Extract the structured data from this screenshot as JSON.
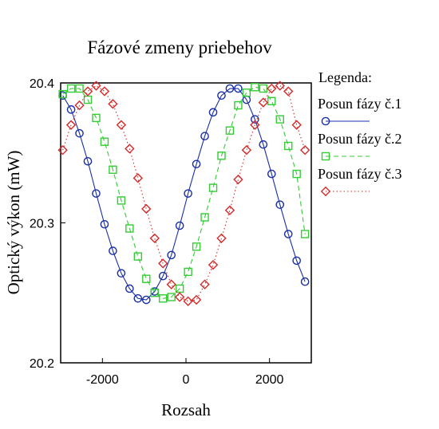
{
  "chart_data": {
    "type": "line",
    "title": "Fázové zmeny priebehov",
    "xlabel": "Rozsah",
    "ylabel": "Optický výkon (mW)",
    "xlim": [
      -3000,
      3000
    ],
    "ylim": [
      20.2,
      20.4
    ],
    "x_ticks": [
      -2000,
      0,
      2000
    ],
    "x_tick_labels": [
      "-2000",
      "0",
      "2000"
    ],
    "y_ticks": [
      20.2,
      20.3,
      20.4
    ],
    "y_tick_labels": [
      "20.2",
      "20.3",
      "20.4"
    ],
    "grid": false,
    "legend": {
      "title": "Legenda:",
      "placement": "right",
      "entries": [
        "Posun fázy č.1",
        "Posun fázy č.2",
        "Posun fázy č.3"
      ]
    },
    "x": [
      -2950,
      -2750,
      -2550,
      -2350,
      -2150,
      -1950,
      -1750,
      -1550,
      -1350,
      -1150,
      -950,
      -750,
      -550,
      -350,
      -150,
      50,
      250,
      450,
      650,
      850,
      1050,
      1250,
      1450,
      1650,
      1850,
      2050,
      2250,
      2450,
      2650,
      2850
    ],
    "series": [
      {
        "name": "Posun fázy č.1",
        "color": "#1a2fa8",
        "marker": "circle",
        "line": "solid",
        "values": [
          20.391,
          20.381,
          20.364,
          20.344,
          20.321,
          20.299,
          20.28,
          20.264,
          20.253,
          20.246,
          20.245,
          20.251,
          20.262,
          20.277,
          20.298,
          20.321,
          20.342,
          20.362,
          20.379,
          20.391,
          20.396,
          20.396,
          20.388,
          20.374,
          20.356,
          20.335,
          20.313,
          20.292,
          20.273,
          20.258
        ]
      },
      {
        "name": "Posun fázy č.2",
        "color": "#33cc33",
        "marker": "square",
        "line": "dashed",
        "values": [
          20.392,
          20.396,
          20.396,
          20.388,
          20.375,
          20.358,
          20.338,
          20.316,
          20.296,
          20.276,
          20.26,
          20.25,
          20.246,
          20.247,
          20.253,
          20.265,
          20.283,
          20.304,
          20.325,
          20.348,
          20.366,
          20.384,
          20.393,
          20.397,
          20.396,
          20.387,
          20.374,
          20.355,
          20.335,
          20.292
        ]
      },
      {
        "name": "Posun fázy č.3",
        "color": "#d42a2a",
        "marker": "diamond",
        "line": "dotted",
        "values": [
          20.352,
          20.37,
          20.384,
          20.394,
          20.398,
          20.394,
          20.385,
          20.37,
          20.353,
          20.332,
          20.31,
          20.289,
          20.271,
          20.256,
          20.247,
          20.244,
          20.245,
          20.256,
          20.27,
          20.289,
          20.309,
          20.331,
          20.352,
          20.37,
          20.386,
          20.396,
          20.398,
          20.394,
          20.37,
          20.352
        ]
      }
    ]
  }
}
